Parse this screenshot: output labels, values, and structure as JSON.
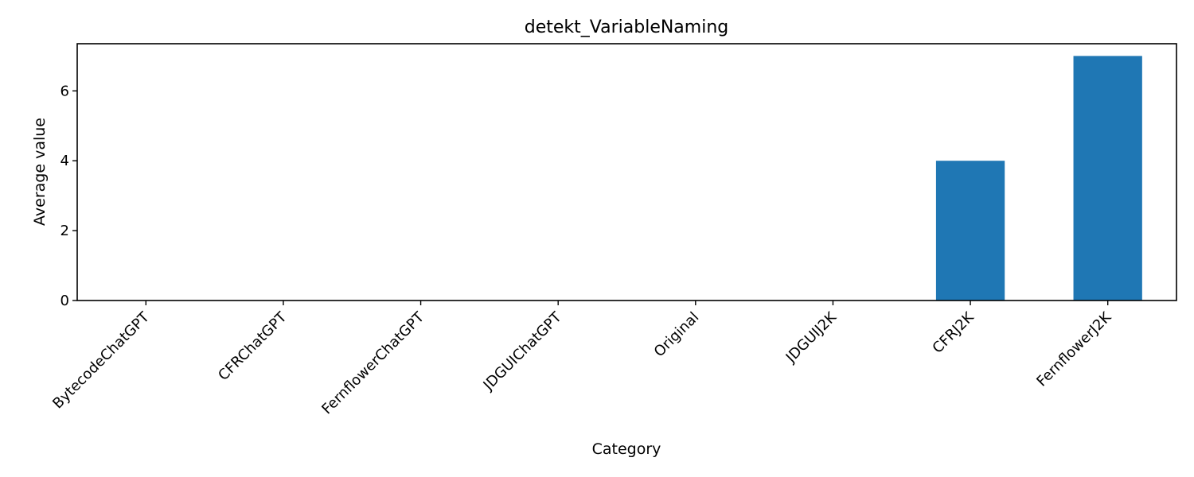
{
  "chart_data": {
    "type": "bar",
    "title": "detekt_VariableNaming",
    "xlabel": "Category",
    "ylabel": "Average value",
    "categories": [
      "BytecodeChatGPT",
      "CFRChatGPT",
      "FernflowerChatGPT",
      "JDGUIChatGPT",
      "Original",
      "JDGUIJ2K",
      "CFRJ2K",
      "FernflowerJ2K"
    ],
    "values": [
      0,
      0,
      0,
      0,
      0,
      0,
      4,
      7
    ],
    "ylim": [
      0,
      7.35
    ],
    "yticks": [
      0,
      2,
      4,
      6
    ],
    "ytick_labels": [
      "0",
      "2",
      "4",
      "6"
    ],
    "grid": false,
    "legend": "none",
    "bar_color": "#1f77b4"
  }
}
